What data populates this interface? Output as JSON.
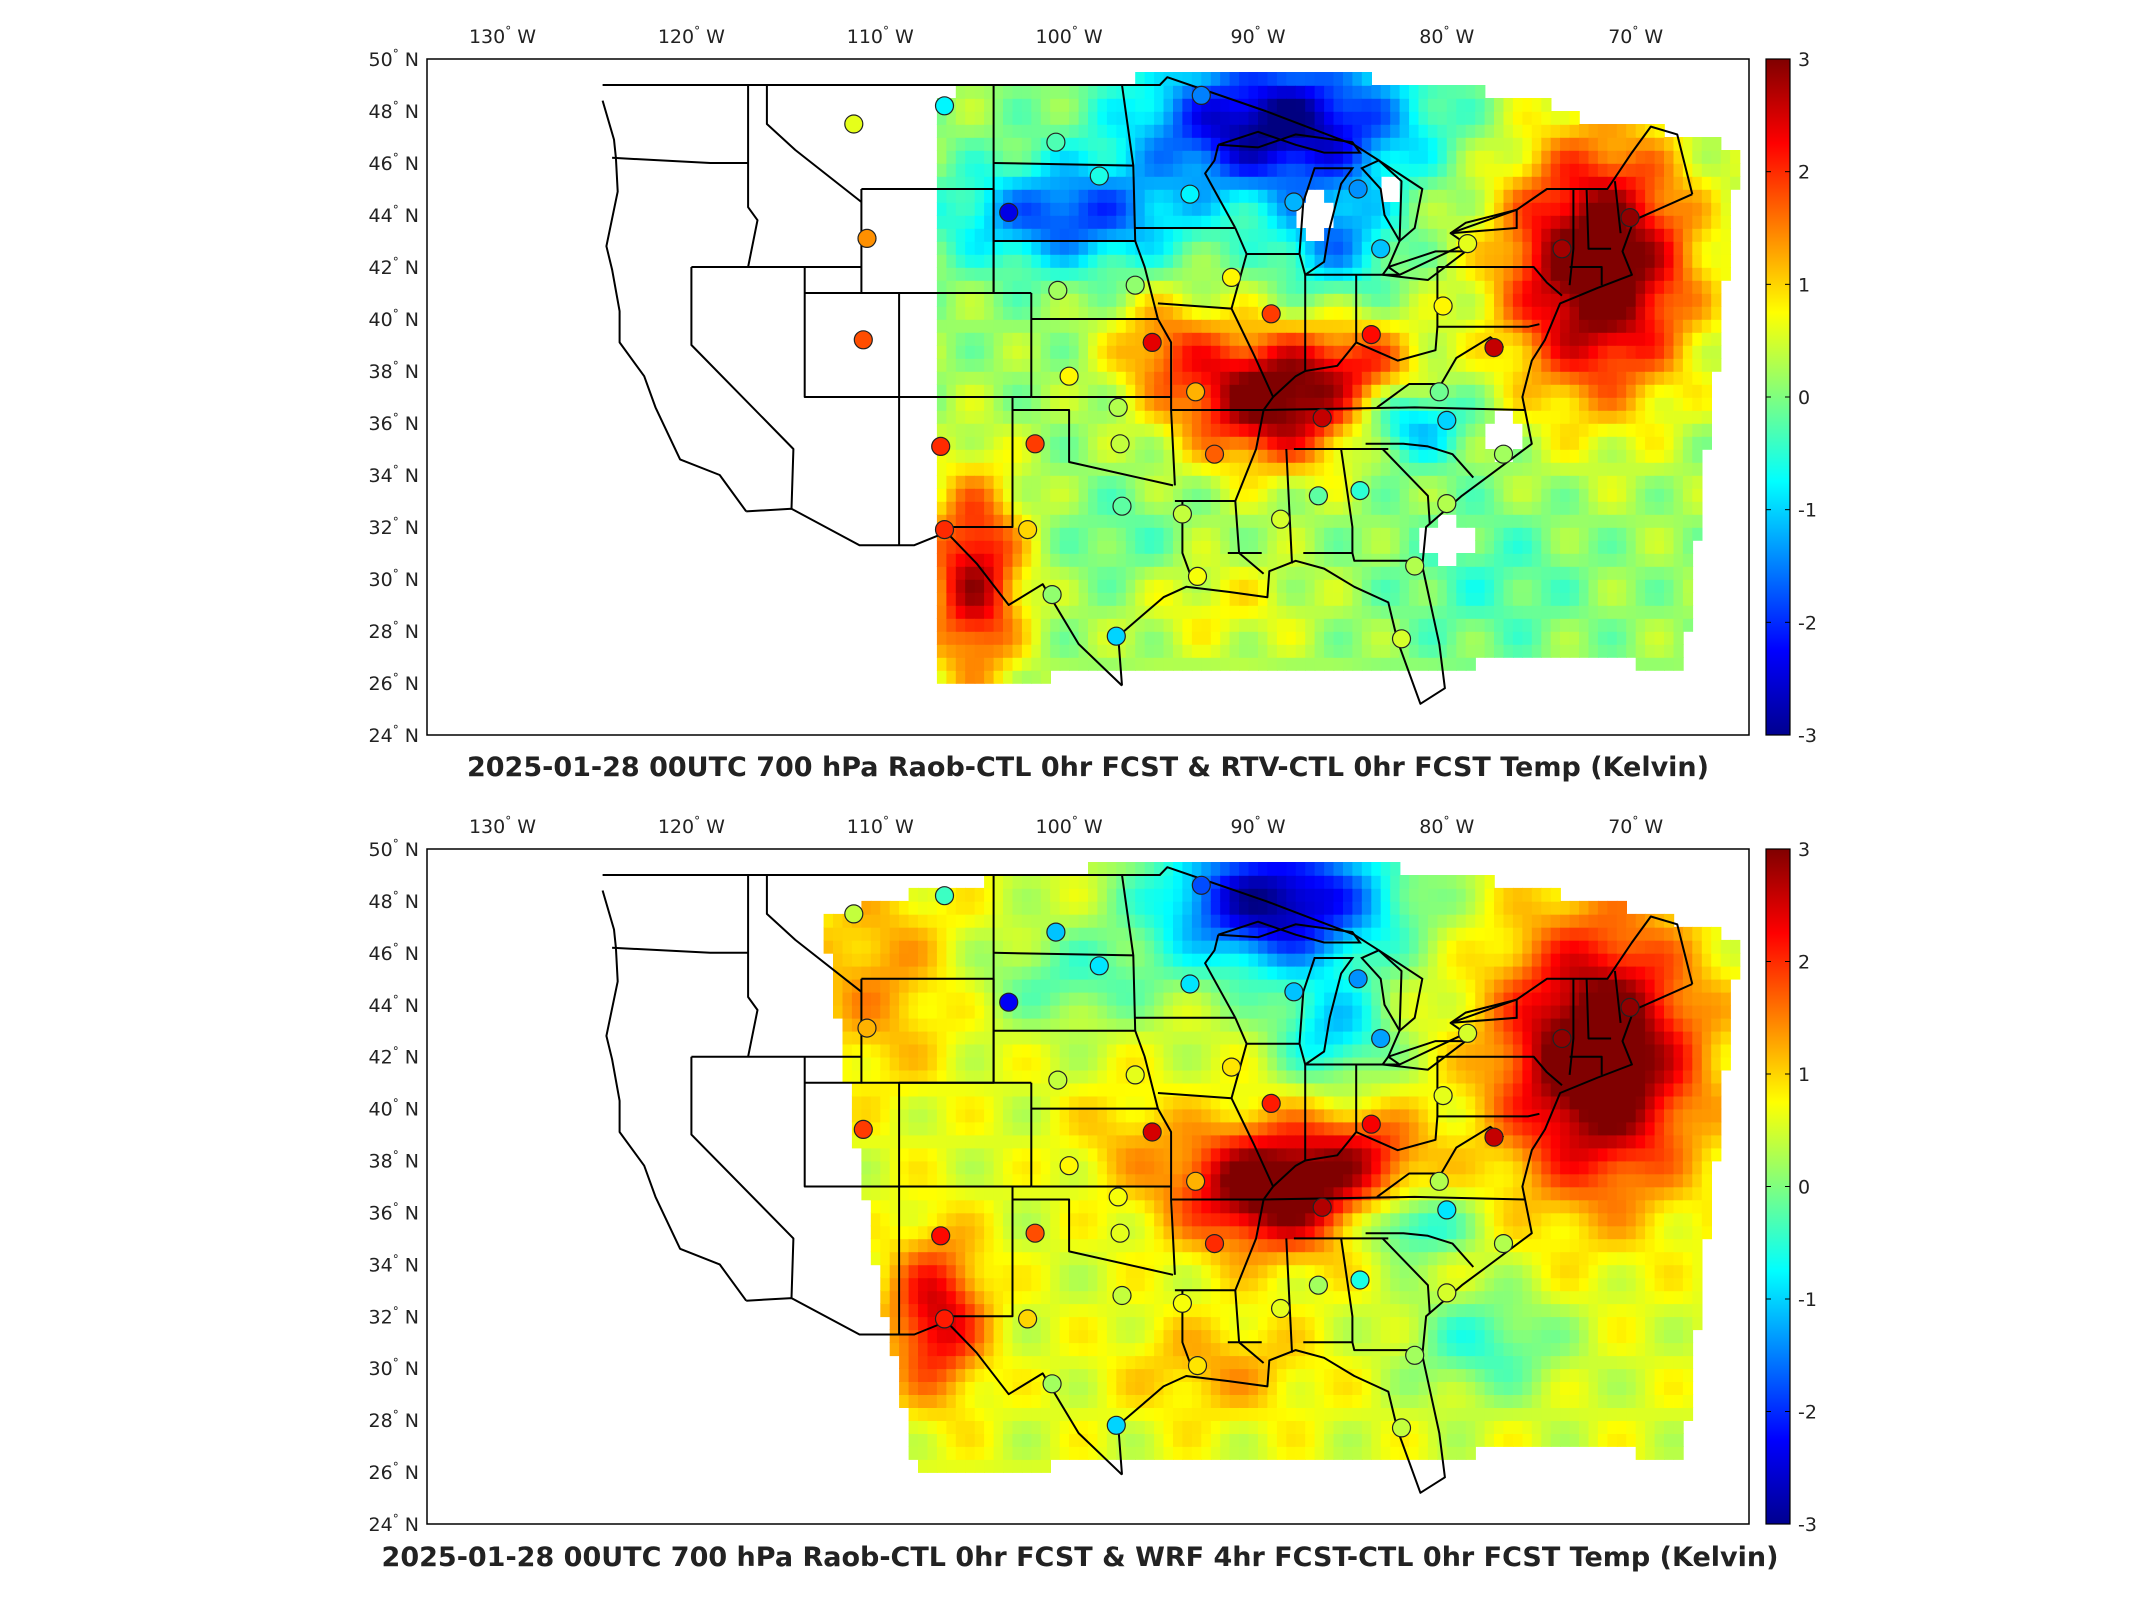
{
  "panels": [
    {
      "title": "2025-01-28 00UTC 700 hPa Raob-CTL 0hr FCST & RTV-CTL 0hr FCST Temp (Kelvin)",
      "field": "top"
    },
    {
      "title": "2025-01-28 00UTC 700 hPa Raob-CTL 0hr FCST & WRF 4hr FCST-CTL 0hr FCST Temp (Kelvin)",
      "field": "bottom"
    }
  ],
  "lon_ticks": [
    {
      "lon": -130,
      "label": "130",
      "hemi": "W"
    },
    {
      "lon": -120,
      "label": "120",
      "hemi": "W"
    },
    {
      "lon": -110,
      "label": "110",
      "hemi": "W"
    },
    {
      "lon": -100,
      "label": "100",
      "hemi": "W"
    },
    {
      "lon": -90,
      "label": "90",
      "hemi": "W"
    },
    {
      "lon": -80,
      "label": "80",
      "hemi": "W"
    },
    {
      "lon": -70,
      "label": "70",
      "hemi": "W"
    }
  ],
  "lat_ticks": [
    {
      "lat": 50,
      "label": "50",
      "hemi": "N"
    },
    {
      "lat": 48,
      "label": "48",
      "hemi": "N"
    },
    {
      "lat": 46,
      "label": "46",
      "hemi": "N"
    },
    {
      "lat": 44,
      "label": "44",
      "hemi": "N"
    },
    {
      "lat": 42,
      "label": "42",
      "hemi": "N"
    },
    {
      "lat": 40,
      "label": "40",
      "hemi": "N"
    },
    {
      "lat": 38,
      "label": "38",
      "hemi": "N"
    },
    {
      "lat": 36,
      "label": "36",
      "hemi": "N"
    },
    {
      "lat": 34,
      "label": "34",
      "hemi": "N"
    },
    {
      "lat": 32,
      "label": "32",
      "hemi": "N"
    },
    {
      "lat": 30,
      "label": "30",
      "hemi": "N"
    },
    {
      "lat": 28,
      "label": "28",
      "hemi": "N"
    },
    {
      "lat": 26,
      "label": "26",
      "hemi": "N"
    },
    {
      "lat": 24,
      "label": "24",
      "hemi": "N"
    }
  ],
  "degree_symbol": "°",
  "colorbar": {
    "colormap": "jet",
    "min": -3,
    "max": 3,
    "ticks": [
      {
        "value": 3,
        "label": "3"
      },
      {
        "value": 2,
        "label": "2"
      },
      {
        "value": 1,
        "label": "1"
      },
      {
        "value": 0,
        "label": "0"
      },
      {
        "value": -1,
        "label": "-1"
      },
      {
        "value": -2,
        "label": "-2"
      },
      {
        "value": -3,
        "label": "-3"
      }
    ]
  },
  "colors": {
    "frame": "#000000",
    "state_lines": "#000000",
    "no_data": "#ffffff"
  },
  "raob_stations": [
    {
      "lon": -111.4,
      "lat": 47.5,
      "top": 0.6,
      "bottom": 0.4
    },
    {
      "lon": -106.6,
      "lat": 48.2,
      "top": -0.8,
      "bottom": -0.4
    },
    {
      "lon": -110.7,
      "lat": 43.1,
      "top": 1.4,
      "bottom": 1.2
    },
    {
      "lon": -110.9,
      "lat": 39.2,
      "top": 1.8,
      "bottom": 1.9
    },
    {
      "lon": -106.8,
      "lat": 35.1,
      "top": 2.0,
      "bottom": 2.2
    },
    {
      "lon": -106.6,
      "lat": 31.9,
      "top": 2.0,
      "bottom": 2.1
    },
    {
      "lon": -101.8,
      "lat": 35.2,
      "top": 1.9,
      "bottom": 1.8
    },
    {
      "lon": -102.2,
      "lat": 31.9,
      "top": 1.0,
      "bottom": 1.0
    },
    {
      "lon": -100.9,
      "lat": 29.4,
      "top": 0.1,
      "bottom": 0.2
    },
    {
      "lon": -100.7,
      "lat": 46.8,
      "top": -0.3,
      "bottom": -1.1
    },
    {
      "lon": -98.4,
      "lat": 45.5,
      "top": -0.6,
      "bottom": -0.9
    },
    {
      "lon": -103.2,
      "lat": 44.1,
      "top": -2.4,
      "bottom": -2.3
    },
    {
      "lon": -100.6,
      "lat": 41.1,
      "top": 0.2,
      "bottom": 0.4
    },
    {
      "lon": -96.5,
      "lat": 41.3,
      "top": 0.1,
      "bottom": 0.6
    },
    {
      "lon": -100.0,
      "lat": 37.8,
      "top": 0.8,
      "bottom": 0.8
    },
    {
      "lon": -97.4,
      "lat": 36.6,
      "top": 0.3,
      "bottom": 0.7
    },
    {
      "lon": -97.3,
      "lat": 35.2,
      "top": 0.4,
      "bottom": 0.6
    },
    {
      "lon": -97.2,
      "lat": 32.8,
      "top": -0.2,
      "bottom": 0.4
    },
    {
      "lon": -97.5,
      "lat": 27.8,
      "top": -1.0,
      "bottom": -1.0
    },
    {
      "lon": -94.0,
      "lat": 32.5,
      "top": 0.4,
      "bottom": 0.7
    },
    {
      "lon": -93.2,
      "lat": 30.1,
      "top": 0.7,
      "bottom": 0.9
    },
    {
      "lon": -93.3,
      "lat": 37.2,
      "top": 1.2,
      "bottom": 1.2
    },
    {
      "lon": -95.6,
      "lat": 39.1,
      "top": 2.4,
      "bottom": 2.5
    },
    {
      "lon": -92.3,
      "lat": 34.8,
      "top": 1.7,
      "bottom": 2.0
    },
    {
      "lon": -89.3,
      "lat": 40.2,
      "top": 1.9,
      "bottom": 2.1
    },
    {
      "lon": -91.4,
      "lat": 41.6,
      "top": 0.8,
      "bottom": 0.9
    },
    {
      "lon": -93.6,
      "lat": 44.8,
      "top": -0.8,
      "bottom": -0.9
    },
    {
      "lon": -93.0,
      "lat": 48.6,
      "top": -1.5,
      "bottom": -1.8
    },
    {
      "lon": -88.1,
      "lat": 44.5,
      "top": -1.2,
      "bottom": -1.1
    },
    {
      "lon": -83.5,
      "lat": 42.7,
      "top": -1.1,
      "bottom": -1.3
    },
    {
      "lon": -84.7,
      "lat": 45.0,
      "top": -1.4,
      "bottom": -1.4
    },
    {
      "lon": -86.6,
      "lat": 36.2,
      "top": 2.6,
      "bottom": 2.7
    },
    {
      "lon": -84.0,
      "lat": 39.4,
      "top": 2.2,
      "bottom": 2.3
    },
    {
      "lon": -88.8,
      "lat": 32.3,
      "top": 0.5,
      "bottom": 0.6
    },
    {
      "lon": -86.8,
      "lat": 33.2,
      "top": -0.2,
      "bottom": 0.2
    },
    {
      "lon": -84.6,
      "lat": 33.4,
      "top": -0.5,
      "bottom": -0.6
    },
    {
      "lon": -80.4,
      "lat": 37.2,
      "top": -0.1,
      "bottom": 0.3
    },
    {
      "lon": -80.2,
      "lat": 40.5,
      "top": 0.8,
      "bottom": 0.6
    },
    {
      "lon": -78.9,
      "lat": 42.9,
      "top": 0.6,
      "bottom": 0.5
    },
    {
      "lon": -77.5,
      "lat": 38.9,
      "top": 2.6,
      "bottom": 2.6
    },
    {
      "lon": -80.0,
      "lat": 36.1,
      "top": -1.0,
      "bottom": -0.9
    },
    {
      "lon": -77.0,
      "lat": 34.8,
      "top": 0.2,
      "bottom": 0.3
    },
    {
      "lon": -80.0,
      "lat": 32.9,
      "top": 0.3,
      "bottom": 0.5
    },
    {
      "lon": -81.7,
      "lat": 30.5,
      "top": 0.3,
      "bottom": 0.2
    },
    {
      "lon": -82.4,
      "lat": 27.7,
      "top": 0.5,
      "bottom": 0.4
    },
    {
      "lon": -73.9,
      "lat": 42.7,
      "top": 2.8,
      "bottom": 2.9
    },
    {
      "lon": -70.3,
      "lat": 43.9,
      "top": 2.9,
      "bottom": 2.9
    }
  ]
}
